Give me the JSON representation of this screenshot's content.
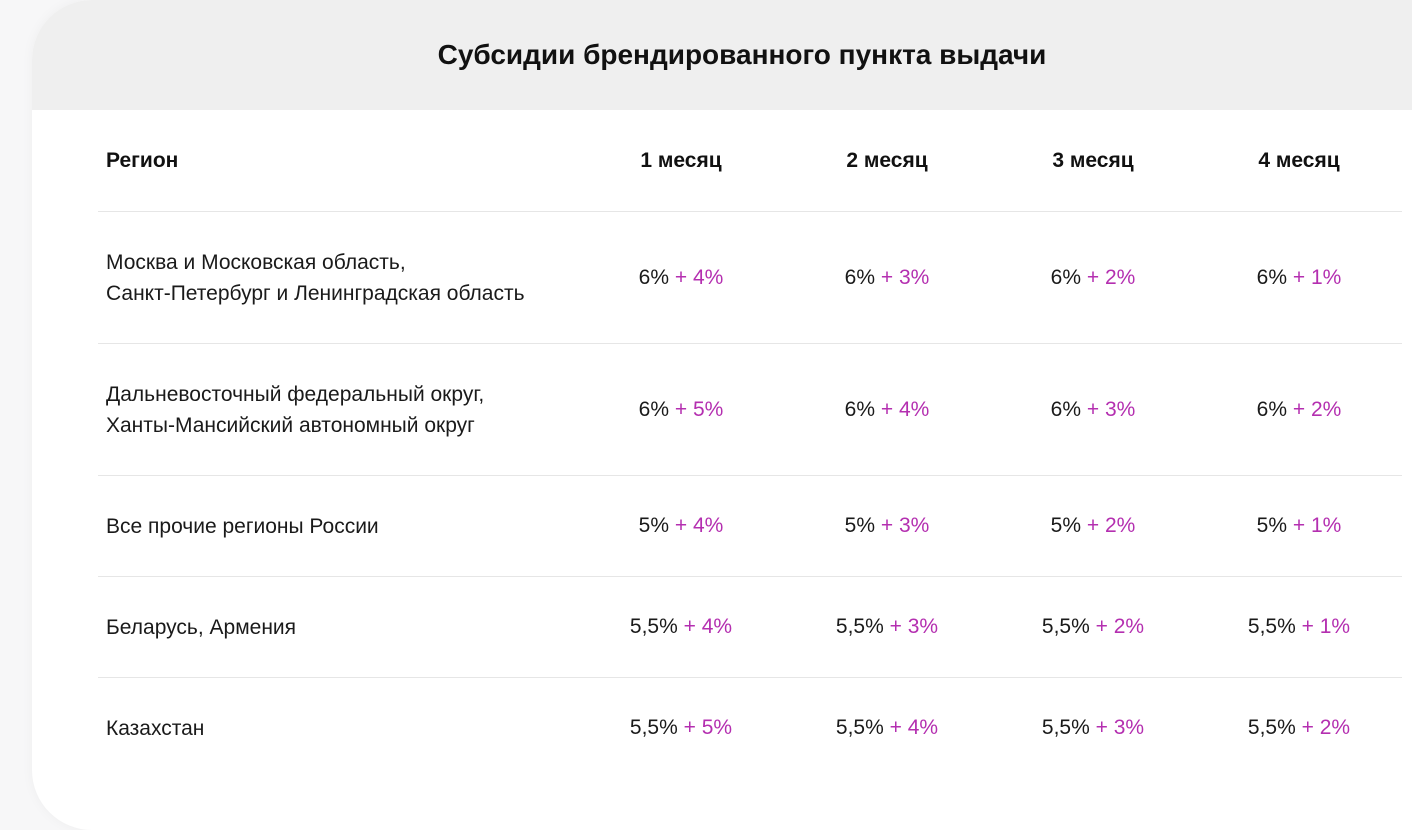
{
  "title": "Субсидии брендированного пункта выдачи",
  "table": {
    "headers": [
      "Регион",
      "1 месяц",
      "2 месяц",
      "3 месяц",
      "4 месяц"
    ],
    "rows": [
      {
        "region_lines": [
          "Москва и Московская область,",
          "Санкт-Петербург и Ленинградская область"
        ],
        "cells": [
          {
            "base": "6%",
            "bonus": "+ 4%"
          },
          {
            "base": "6%",
            "bonus": "+ 3%"
          },
          {
            "base": "6%",
            "bonus": "+ 2%"
          },
          {
            "base": "6%",
            "bonus": "+ 1%"
          }
        ]
      },
      {
        "region_lines": [
          "Дальневосточный федеральный округ,",
          "Ханты-Мансийский автономный округ"
        ],
        "cells": [
          {
            "base": "6%",
            "bonus": "+ 5%"
          },
          {
            "base": "6%",
            "bonus": "+ 4%"
          },
          {
            "base": "6%",
            "bonus": "+ 3%"
          },
          {
            "base": "6%",
            "bonus": "+ 2%"
          }
        ]
      },
      {
        "region_lines": [
          "Все прочие регионы России"
        ],
        "cells": [
          {
            "base": "5%",
            "bonus": "+ 4%"
          },
          {
            "base": "5%",
            "bonus": "+ 3%"
          },
          {
            "base": "5%",
            "bonus": "+ 2%"
          },
          {
            "base": "5%",
            "bonus": "+ 1%"
          }
        ]
      },
      {
        "region_lines": [
          "Беларусь, Армения"
        ],
        "cells": [
          {
            "base": "5,5%",
            "bonus": "+ 4%"
          },
          {
            "base": "5,5%",
            "bonus": "+ 3%"
          },
          {
            "base": "5,5%",
            "bonus": "+ 2%"
          },
          {
            "base": "5,5%",
            "bonus": "+ 1%"
          }
        ]
      },
      {
        "region_lines": [
          "Казахстан"
        ],
        "cells": [
          {
            "base": "5,5%",
            "bonus": "+ 5%"
          },
          {
            "base": "5,5%",
            "bonus": "+ 4%"
          },
          {
            "base": "5,5%",
            "bonus": "+ 3%"
          },
          {
            "base": "5,5%",
            "bonus": "+ 2%"
          }
        ]
      }
    ]
  },
  "colors": {
    "bonus": "#b42fb0",
    "header_band": "#efefef",
    "divider": "#e6e6e6"
  }
}
